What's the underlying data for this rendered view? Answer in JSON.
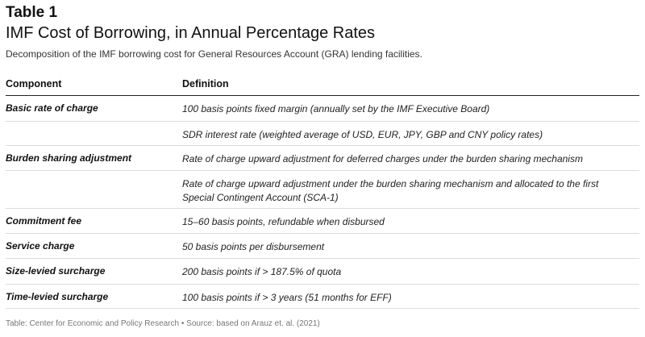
{
  "header": {
    "table_label": "Table 1",
    "title": "IMF Cost of Borrowing, in Annual Percentage Rates",
    "subtitle": "Decomposition of the IMF borrowing cost for General Resources Account (GRA) lending facilities."
  },
  "table": {
    "columns": [
      "Component",
      "Definition"
    ],
    "rows": [
      {
        "component": "Basic rate of charge",
        "definition": "100 basis points fixed margin (annually set by the IMF Executive Board)"
      },
      {
        "component": "",
        "definition": "SDR interest rate (weighted average of USD, EUR, JPY, GBP and CNY policy rates)"
      },
      {
        "component": "Burden sharing adjustment",
        "definition": "Rate of charge upward adjustment for deferred charges under the burden sharing mechanism"
      },
      {
        "component": "",
        "definition": "Rate of charge upward adjustment under the burden sharing mechanism and allocated to the first Special Contingent Account (SCA-1)"
      },
      {
        "component": "Commitment fee",
        "definition": "15–60 basis points, refundable when disbursed"
      },
      {
        "component": "Service charge",
        "definition": "50 basis points per disbursement"
      },
      {
        "component": "Size-levied surcharge",
        "definition": "200 basis points if > 187.5% of quota"
      },
      {
        "component": "Time-levied surcharge",
        "definition": "100 basis points if > 3 years (51 months for EFF)"
      }
    ]
  },
  "footer": {
    "source": "Table: Center for Economic and Policy Research • Source: based on Arauz et. al. (2021)"
  }
}
